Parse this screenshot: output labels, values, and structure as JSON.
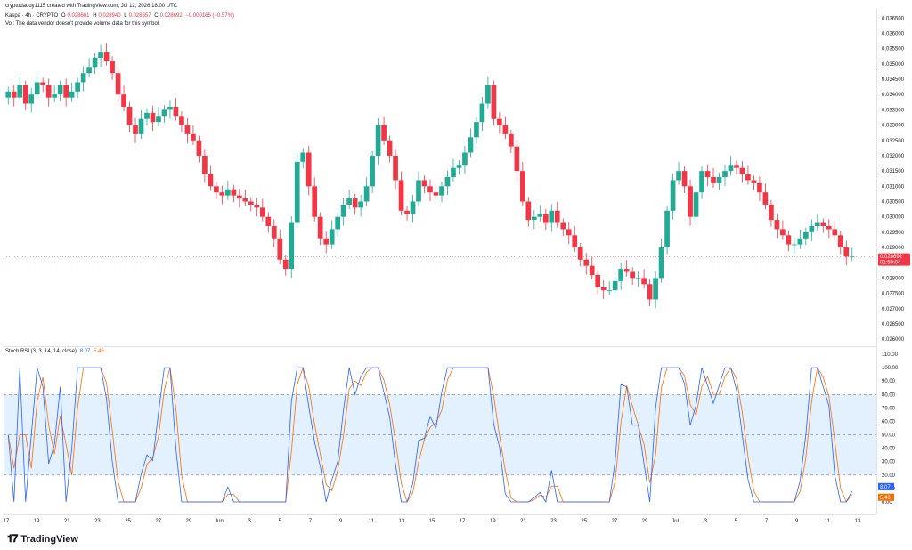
{
  "header": {
    "created_by": "cryptodaddy1115 created with TradingView.com, Jul 12, 2026 18:00 UTC",
    "symbol_line": "Kaspa · 4h · CRYPTO",
    "open_label": "O",
    "open_value": "0.028661",
    "high_label": "H",
    "high_value": "0.028940",
    "low_label": "L",
    "low_value": "0.028657",
    "close_label": "C",
    "close_value": "0.028692",
    "change": "−0.000165 (−0.57%)",
    "vol_notice": "Vol: The data vendor doesn't provide volume data for this symbol."
  },
  "colors": {
    "up": "#22ab94",
    "down": "#f23645",
    "k_line": "#2962ff",
    "d_line": "#ff6d00",
    "band_fill": "#e3f0fd",
    "grid": "#f0f3fa",
    "accent_red": "#f23645"
  },
  "price_labels": [
    "0.036500",
    "0.036000",
    "0.035500",
    "0.035000",
    "0.034500",
    "0.034000",
    "0.033500",
    "0.033000",
    "0.032500",
    "0.032000",
    "0.031500",
    "0.031000",
    "0.030500",
    "0.030000",
    "0.029500",
    "0.029000",
    "0.028500",
    "0.028000",
    "0.027500",
    "0.027000",
    "0.026500",
    "0.026000"
  ],
  "current_price": {
    "value": "0.028692",
    "countdown": "01:59:04"
  },
  "rsi": {
    "title": "Stoch RSI (3, 3, 14, 14, close)",
    "k_value": "8.07",
    "d_value": "5.46",
    "labels": [
      "110.00",
      "100.00",
      "90.00",
      "80.00",
      "70.00",
      "60.00",
      "50.00",
      "40.00",
      "30.00",
      "20.00",
      "10.00",
      "0.00"
    ],
    "k_last": "8.07",
    "d_last": "5.46"
  },
  "x_axis": [
    "17",
    "19",
    "21",
    "23",
    "25",
    "27",
    "29",
    "Jun",
    "3",
    "5",
    "7",
    "9",
    "11",
    "13",
    "15",
    "17",
    "19",
    "21",
    "23",
    "25",
    "27",
    "29",
    "Jul",
    "3",
    "5",
    "7",
    "9",
    "11",
    "13"
  ],
  "footer": {
    "brand": "TradingView"
  },
  "chart_data": {
    "type": "candlestick",
    "timeframe": "4h",
    "ylim": [
      0.0258,
      0.0368
    ],
    "rsi_ylim": [
      0,
      110
    ],
    "rsi_bands": [
      20,
      50,
      80
    ],
    "closes": [
      0.0341,
      0.0339,
      0.0343,
      0.0337,
      0.034,
      0.0344,
      0.0343,
      0.0339,
      0.034,
      0.0343,
      0.0339,
      0.0341,
      0.0344,
      0.0347,
      0.0349,
      0.0352,
      0.0354,
      0.0351,
      0.0347,
      0.034,
      0.0336,
      0.033,
      0.0327,
      0.0332,
      0.0334,
      0.0331,
      0.0333,
      0.0335,
      0.0336,
      0.0333,
      0.033,
      0.0327,
      0.0325,
      0.032,
      0.0314,
      0.031,
      0.0308,
      0.0307,
      0.0309,
      0.0307,
      0.0306,
      0.0305,
      0.0304,
      0.0303,
      0.03,
      0.0297,
      0.0293,
      0.0286,
      0.0283,
      0.0298,
      0.0318,
      0.0321,
      0.031,
      0.03,
      0.0293,
      0.0291,
      0.0296,
      0.03,
      0.0304,
      0.0306,
      0.0303,
      0.0305,
      0.031,
      0.032,
      0.033,
      0.0325,
      0.032,
      0.0312,
      0.0302,
      0.0301,
      0.0305,
      0.0312,
      0.031,
      0.0308,
      0.0307,
      0.031,
      0.0313,
      0.0316,
      0.0317,
      0.0321,
      0.0326,
      0.0331,
      0.0337,
      0.0343,
      0.0332,
      0.033,
      0.0327,
      0.0323,
      0.0315,
      0.0305,
      0.0299,
      0.03,
      0.0301,
      0.0298,
      0.0302,
      0.0298,
      0.0296,
      0.0294,
      0.029,
      0.0286,
      0.0284,
      0.0281,
      0.0277,
      0.0276,
      0.0276,
      0.0279,
      0.0283,
      0.0282,
      0.028,
      0.028,
      0.0278,
      0.0273,
      0.028,
      0.029,
      0.0302,
      0.0312,
      0.0315,
      0.031,
      0.03,
      0.0308,
      0.0315,
      0.0313,
      0.0311,
      0.0313,
      0.0315,
      0.0317,
      0.0316,
      0.0314,
      0.0312,
      0.0311,
      0.0308,
      0.0304,
      0.0299,
      0.0296,
      0.0294,
      0.0291,
      0.0291,
      0.0293,
      0.0295,
      0.0297,
      0.0298,
      0.0297,
      0.0296,
      0.0294,
      0.029,
      0.0287,
      0.0287
    ],
    "stoch_rsi_k_last": 8.07,
    "stoch_rsi_d_last": 5.46
  }
}
